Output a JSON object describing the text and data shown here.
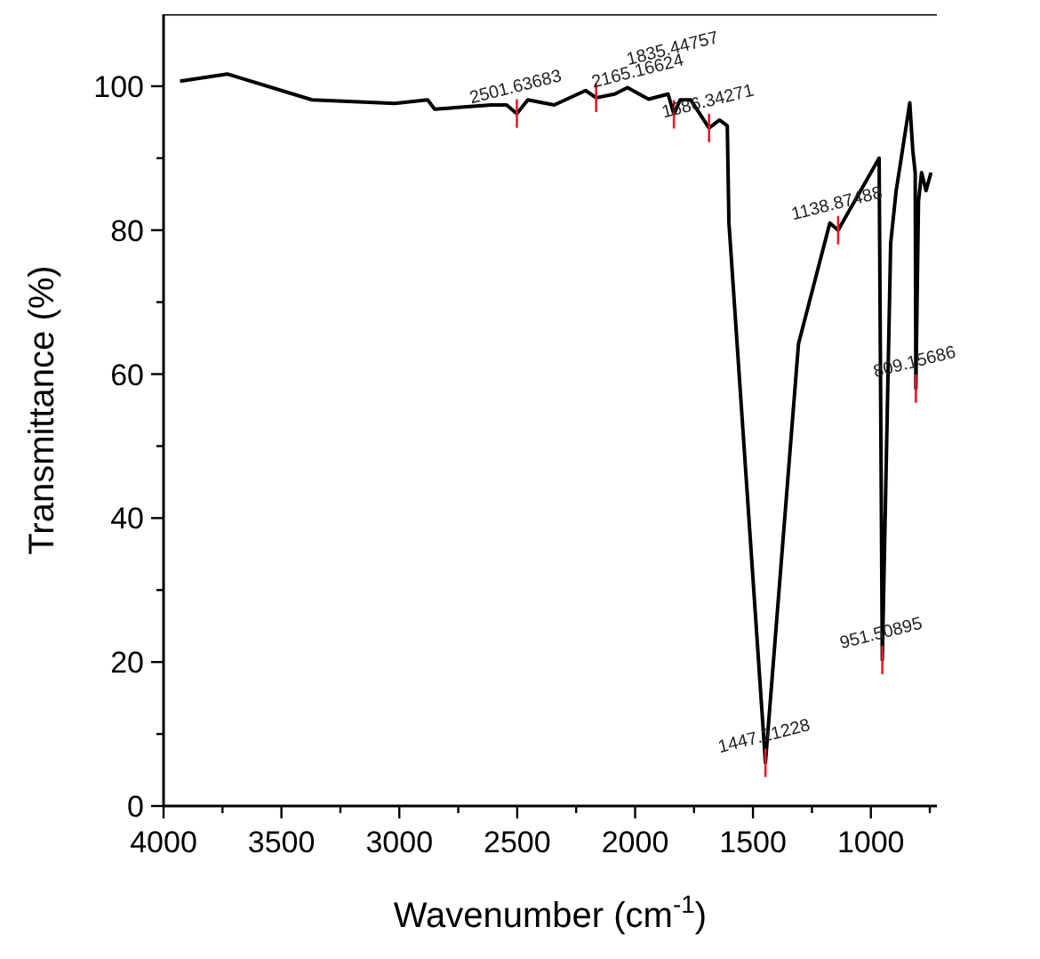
{
  "chart_data": {
    "type": "line",
    "xlabel": "Wavenumber (cm$^{-1}$)",
    "ylabel": "Transmittance (%)",
    "x": [
      3930,
      3730,
      3370,
      3020,
      2880,
      2850,
      2610,
      2545,
      2501.6,
      2455,
      2343,
      2210,
      2165.2,
      2087,
      2032,
      1943,
      1860,
      1835.4,
      1809,
      1764,
      1686.3,
      1642,
      1609,
      1602,
      1447.2,
      1307,
      1174,
      1138.9,
      965,
      951.5,
      916,
      893,
      835,
      822,
      812,
      809.2,
      798,
      785,
      766,
      745
    ],
    "series": [
      {
        "color": "#000000",
        "values": [
          100.7,
          101.7,
          98.1,
          97.6,
          98.1,
          96.8,
          97.4,
          97.4,
          96.2,
          98.1,
          97.4,
          99.4,
          98.4,
          98.9,
          99.8,
          98.2,
          98.9,
          96.1,
          98.1,
          98.1,
          94.2,
          95.3,
          94.5,
          81,
          6,
          64.2,
          81,
          80,
          90,
          20.3,
          78.2,
          85.4,
          97.7,
          91,
          88,
          58,
          84,
          88,
          85.5,
          88
        ]
      }
    ],
    "xlim": [
      4000,
      720
    ],
    "ylim": [
      0,
      110
    ],
    "xticks": [
      4000,
      {
        "value": 3750,
        "label": null
      },
      3500,
      {
        "value": 3250,
        "label": null
      },
      3000,
      {
        "value": 2750,
        "label": null
      },
      2500,
      {
        "value": 2250,
        "label": null
      },
      2000,
      {
        "value": 1750,
        "label": null
      },
      1500,
      {
        "value": 1250,
        "label": null
      },
      1000,
      {
        "value": 750,
        "label": null
      }
    ],
    "yticks": [
      0,
      {
        "value": 10,
        "label": null
      },
      20,
      {
        "value": 30,
        "label": null
      },
      40,
      {
        "value": 50,
        "label": null
      },
      60,
      {
        "value": 70,
        "label": null
      },
      80,
      {
        "value": 90,
        "label": null
      },
      100
    ],
    "grid": false,
    "marker": "none",
    "line_style": "solid",
    "annotations": [
      {
        "text": "2501.63683",
        "x": 2501.6,
        "y": 96.2
      },
      {
        "text": "2165.16624",
        "x": 2165.2,
        "y": 98.4
      },
      {
        "text": "1835.44757",
        "x": 1835.4,
        "y": 96.1
      },
      {
        "text": "1686.34271",
        "x": 1686.3,
        "y": 94.2
      },
      {
        "text": "1447.21228",
        "x": 1447.2,
        "y": 6
      },
      {
        "text": "1138.87488",
        "x": 1138.9,
        "y": 80
      },
      {
        "text": "951.50895",
        "x": 951.5,
        "y": 20.3
      },
      {
        "text": "809.15686",
        "x": 809.2,
        "y": 58
      }
    ]
  }
}
